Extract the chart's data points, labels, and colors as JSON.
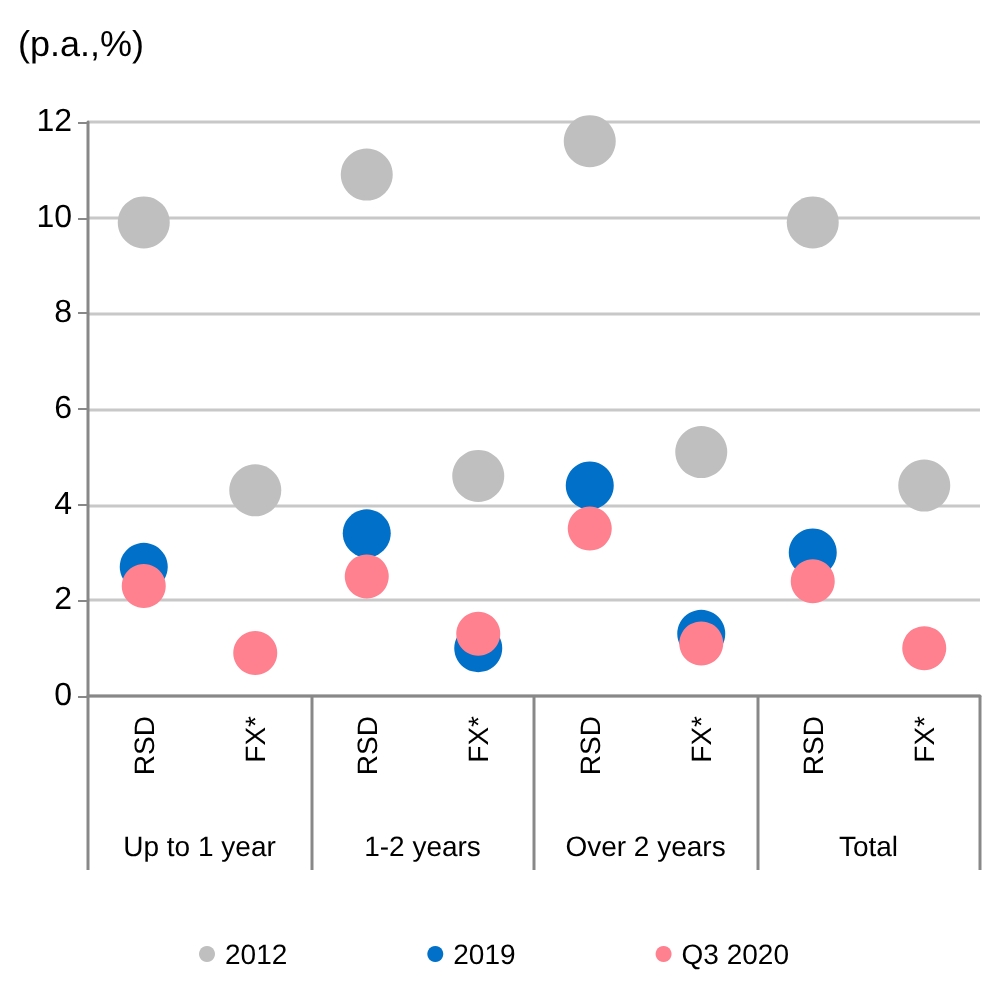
{
  "chart_data": {
    "type": "scatter",
    "ylabel": "(p.a.,%)",
    "categories": [
      "RSD",
      "FX*",
      "RSD",
      "FX*",
      "RSD",
      "FX*",
      "RSD",
      "FX*"
    ],
    "annotations": [
      "Up to 1 year",
      "1-2 years",
      "Over 2 years",
      "Total"
    ],
    "series": [
      {
        "name": "2012",
        "color": "#bfbfbf",
        "values": [
          9.9,
          4.3,
          10.9,
          4.6,
          11.6,
          5.1,
          9.9,
          4.4
        ]
      },
      {
        "name": "2019",
        "color": "#0070c8",
        "values": [
          2.7,
          null,
          3.4,
          1.0,
          4.4,
          1.3,
          3.0,
          null
        ]
      },
      {
        "name": "Q3 2020",
        "color": "#ff808e",
        "values": [
          2.3,
          0.9,
          2.5,
          1.3,
          3.5,
          1.1,
          2.4,
          1.0
        ]
      }
    ],
    "ylim": [
      0,
      12
    ],
    "yticks": [
      0,
      2,
      4,
      6,
      8,
      10,
      12
    ],
    "grid": "y",
    "legend": "bottom",
    "marker": "circle"
  }
}
